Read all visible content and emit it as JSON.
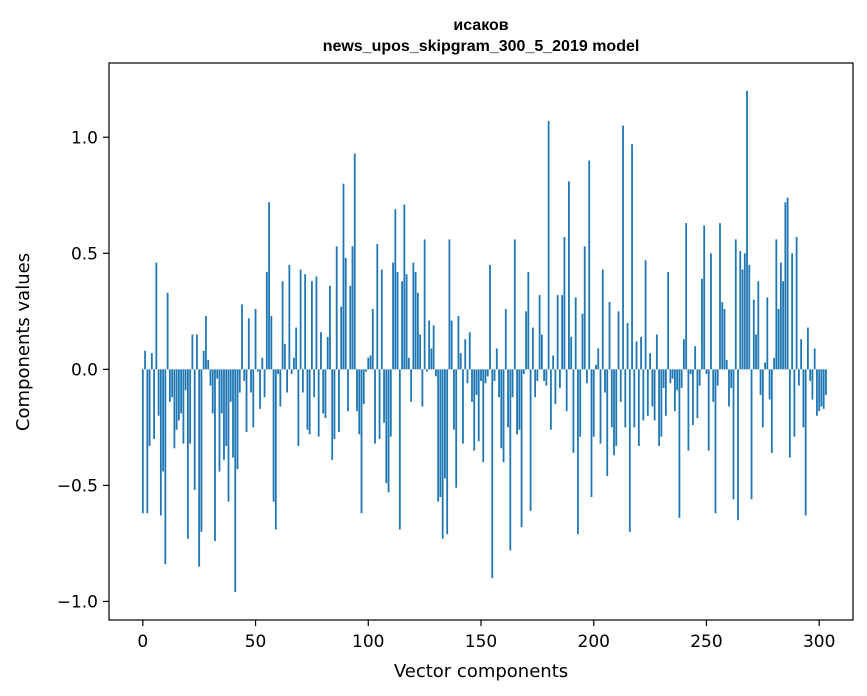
{
  "chart_data": {
    "type": "bar",
    "title_line1": "исаков",
    "title_line2": "news_upos_skipgram_300_5_2019 model",
    "xlabel": "Vector components",
    "ylabel": "Components values",
    "xlim": [
      -15,
      315
    ],
    "ylim": [
      -1.08,
      1.32
    ],
    "xticks": [
      0,
      50,
      100,
      150,
      200,
      250,
      300
    ],
    "xtick_labels": [
      "0",
      "50",
      "100",
      "150",
      "200",
      "250",
      "300"
    ],
    "yticks": [
      -1.0,
      -0.5,
      0.0,
      0.5,
      1.0
    ],
    "ytick_labels": [
      "−1.0",
      "−0.5",
      "0.0",
      "0.5",
      "1.0"
    ],
    "bar_color": "#1f77b4",
    "values": [
      -0.62,
      0.08,
      -0.62,
      -0.33,
      0.07,
      -0.3,
      0.46,
      -0.2,
      -0.63,
      -0.44,
      -0.84,
      0.33,
      -0.14,
      -0.12,
      -0.34,
      -0.26,
      -0.22,
      -0.19,
      -0.32,
      -0.09,
      -0.73,
      -0.32,
      0.15,
      -0.52,
      0.15,
      -0.85,
      -0.7,
      0.08,
      0.23,
      0.04,
      -0.07,
      -0.19,
      -0.74,
      -0.04,
      -0.44,
      -0.19,
      -0.39,
      -0.33,
      -0.57,
      -0.14,
      -0.38,
      -0.96,
      -0.43,
      -0.1,
      0.28,
      -0.05,
      -0.27,
      0.22,
      -0.1,
      -0.25,
      0.26,
      -0.01,
      -0.17,
      0.05,
      -0.12,
      0.42,
      0.72,
      0.23,
      -0.57,
      -0.69,
      -0.02,
      -0.16,
      0.38,
      0.11,
      -0.1,
      0.45,
      -0.02,
      0.05,
      0.18,
      -0.33,
      0.43,
      -0.1,
      0.41,
      -0.26,
      -0.28,
      0.38,
      -0.12,
      0.4,
      -0.29,
      0.16,
      -0.19,
      -0.21,
      0.14,
      0.36,
      -0.39,
      -0.3,
      0.53,
      -0.27,
      0.27,
      0.8,
      0.48,
      -0.18,
      0.36,
      0.53,
      0.93,
      -0.18,
      -0.28,
      -0.62,
      -0.15,
      -0.01,
      0.05,
      0.06,
      0.26,
      -0.32,
      0.54,
      -0.3,
      0.43,
      -0.23,
      -0.49,
      -0.53,
      -0.29,
      0.46,
      0.69,
      0.42,
      -0.69,
      0.38,
      0.71,
      0.41,
      0.05,
      -0.14,
      0.46,
      0.42,
      0.33,
      0.15,
      -0.16,
      0.56,
      -0.01,
      0.21,
      0.09,
      0.19,
      -0.03,
      -0.57,
      -0.55,
      -0.73,
      -0.47,
      -0.71,
      0.56,
      0.21,
      -0.26,
      -0.51,
      0.23,
      0.07,
      -0.32,
      0.13,
      -0.06,
      0.16,
      -0.14,
      -0.35,
      -0.11,
      -0.31,
      -0.05,
      -0.4,
      -0.06,
      -0.03,
      0.45,
      -0.9,
      -0.05,
      0.09,
      -0.12,
      -0.34,
      -0.4,
      0.26,
      -0.25,
      -0.78,
      -0.12,
      0.56,
      -0.28,
      -0.26,
      -0.68,
      -0.02,
      0.25,
      0.42,
      -0.61,
      0.18,
      -0.12,
      -0.05,
      0.32,
      0.15,
      -0.05,
      -0.07,
      1.07,
      -0.26,
      0.06,
      -0.15,
      0.32,
      -0.08,
      0.32,
      0.57,
      -0.18,
      0.81,
      0.14,
      -0.36,
      0.31,
      -0.71,
      -0.29,
      0.24,
      0.53,
      -0.06,
      0.9,
      -0.55,
      -0.29,
      0.02,
      0.09,
      -0.32,
      0.43,
      -0.1,
      -0.46,
      0.29,
      -0.25,
      -0.37,
      -0.33,
      0.25,
      -0.14,
      1.05,
      -0.25,
      0.2,
      -0.7,
      0.97,
      -0.25,
      0.12,
      -0.33,
      0.14,
      -0.22,
      0.47,
      -0.2,
      0.07,
      -0.16,
      -0.22,
      0.15,
      -0.33,
      -0.29,
      -0.08,
      -0.2,
      0.42,
      -0.06,
      -0.04,
      -0.18,
      -0.09,
      -0.64,
      -0.08,
      0.13,
      0.63,
      -0.35,
      -0.02,
      -0.24,
      0.1,
      -0.21,
      -0.07,
      0.39,
      0.62,
      -0.02,
      -0.35,
      0.5,
      -0.14,
      -0.62,
      -0.07,
      0.63,
      0.29,
      0.26,
      0.04,
      -0.16,
      -0.08,
      -0.56,
      0.56,
      -0.65,
      0.51,
      0.43,
      0.5,
      1.2,
      0.45,
      -0.56,
      0.3,
      0.15,
      0.38,
      -0.11,
      -0.25,
      0.03,
      0.31,
      -0.13,
      -0.36,
      0.05,
      0.56,
      0.26,
      0.46,
      0.38,
      0.72,
      0.74,
      -0.38,
      0.5,
      -0.29,
      0.57,
      -0.07,
      0.13,
      -0.25,
      -0.63,
      0.18,
      -0.05,
      -0.13,
      0.09,
      -0.2,
      -0.18,
      -0.16,
      -0.17,
      -0.11
    ]
  }
}
